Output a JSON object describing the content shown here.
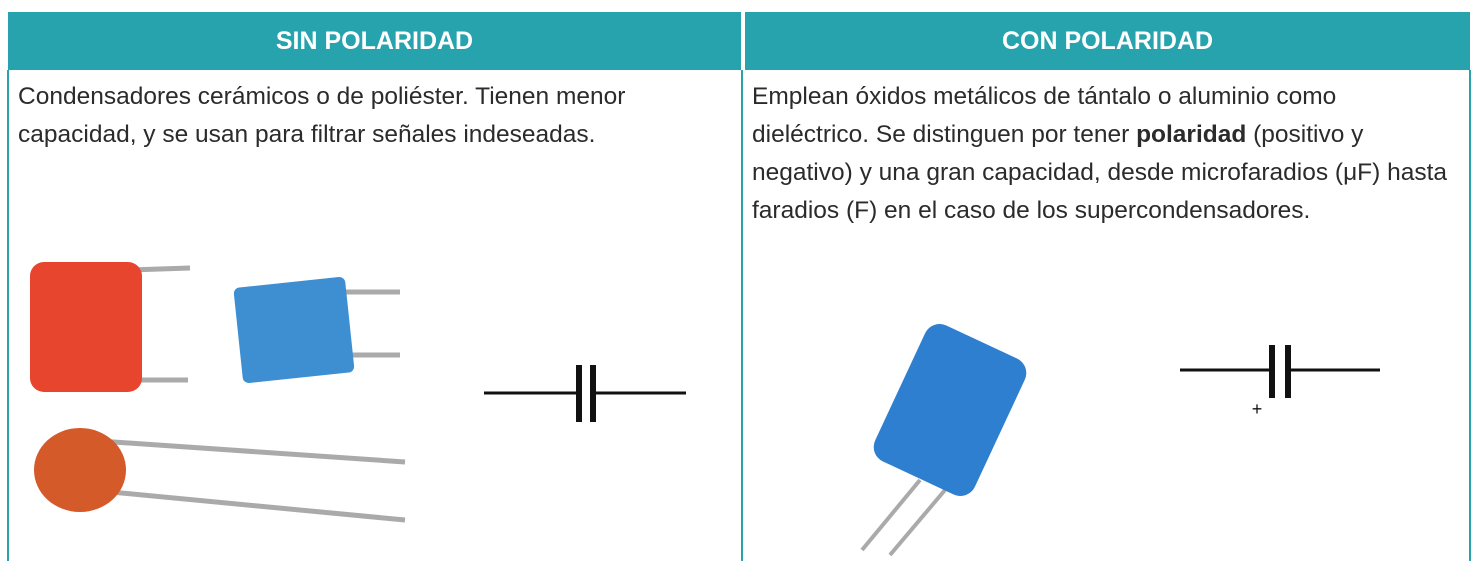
{
  "table": {
    "headers": [
      "SIN POLARIDAD",
      "CON POLARIDAD"
    ],
    "cells": [
      {
        "text": "Condensadores cerámicos o de poliéster. Tienen menor capacidad, y se usan para filtrar señales indeseadas."
      },
      {
        "text_parts": [
          "Emplean óxidos metálicos de tántalo o aluminio como dieléctrico. Se distinguen por tener ",
          "polaridad",
          " (positivo y negativo) y una gran capacidad, desde microfaradios (μF) hasta faradios (F) en el caso de los supercondensadores."
        ],
        "symbol_label": "+"
      }
    ]
  }
}
